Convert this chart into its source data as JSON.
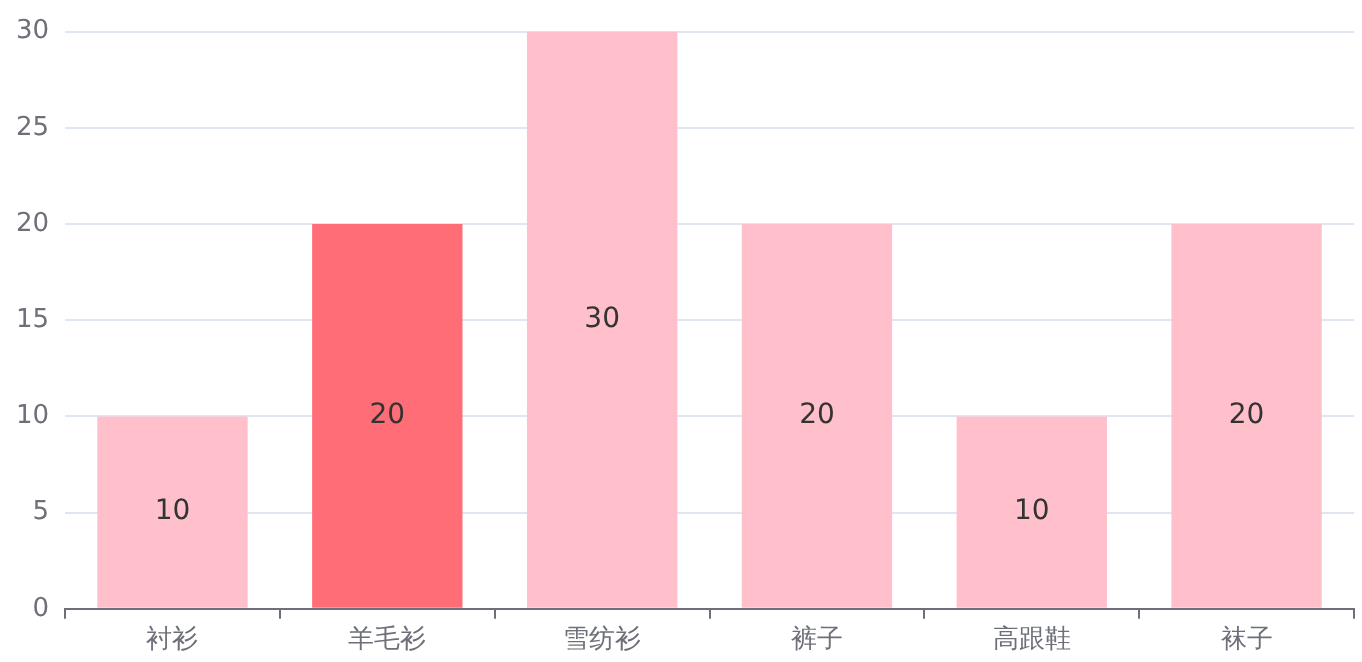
{
  "chart_data": {
    "type": "bar",
    "categories": [
      "衬衫",
      "羊毛衫",
      "雪纺衫",
      "裤子",
      "高跟鞋",
      "袜子"
    ],
    "values": [
      10,
      20,
      30,
      20,
      10,
      20
    ],
    "colors": [
      "#ffc0cb",
      "#ff6e76",
      "#ffc0cb",
      "#ffc0cb",
      "#ffc0cb",
      "#ffc0cb"
    ],
    "ylim": [
      0,
      30
    ],
    "yticks": [
      0,
      5,
      10,
      15,
      20,
      25,
      30
    ],
    "grid": "y",
    "data_labels": true
  }
}
